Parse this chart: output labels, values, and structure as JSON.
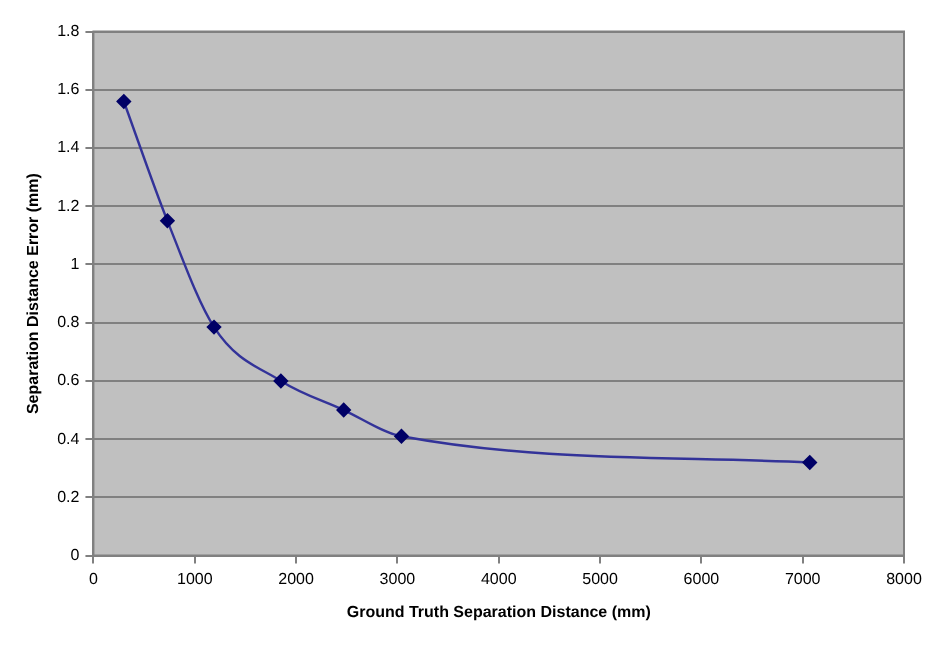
{
  "chart_data": {
    "type": "line",
    "xlabel": "Ground Truth Separation Distance (mm)",
    "ylabel": "Separation Distance Error (mm)",
    "x": [
      300,
      730,
      1190,
      1850,
      2470,
      3040,
      7070
    ],
    "series": [
      {
        "color": "#333399",
        "values": [
          1.56,
          1.15,
          0.785,
          0.6,
          0.5,
          0.41,
          0.32
        ]
      }
    ],
    "xlim": [
      0,
      8000
    ],
    "xticks": [
      0,
      1000,
      2000,
      3000,
      4000,
      5000,
      6000,
      7000,
      8000
    ],
    "ylim": [
      0,
      1.8
    ],
    "yticks": [
      0,
      0.2,
      0.4,
      0.6,
      0.8,
      1,
      1.2,
      1.4,
      1.6,
      1.8
    ],
    "grid": "y",
    "marker": "diamond",
    "line_style": "solid",
    "legend": false
  }
}
